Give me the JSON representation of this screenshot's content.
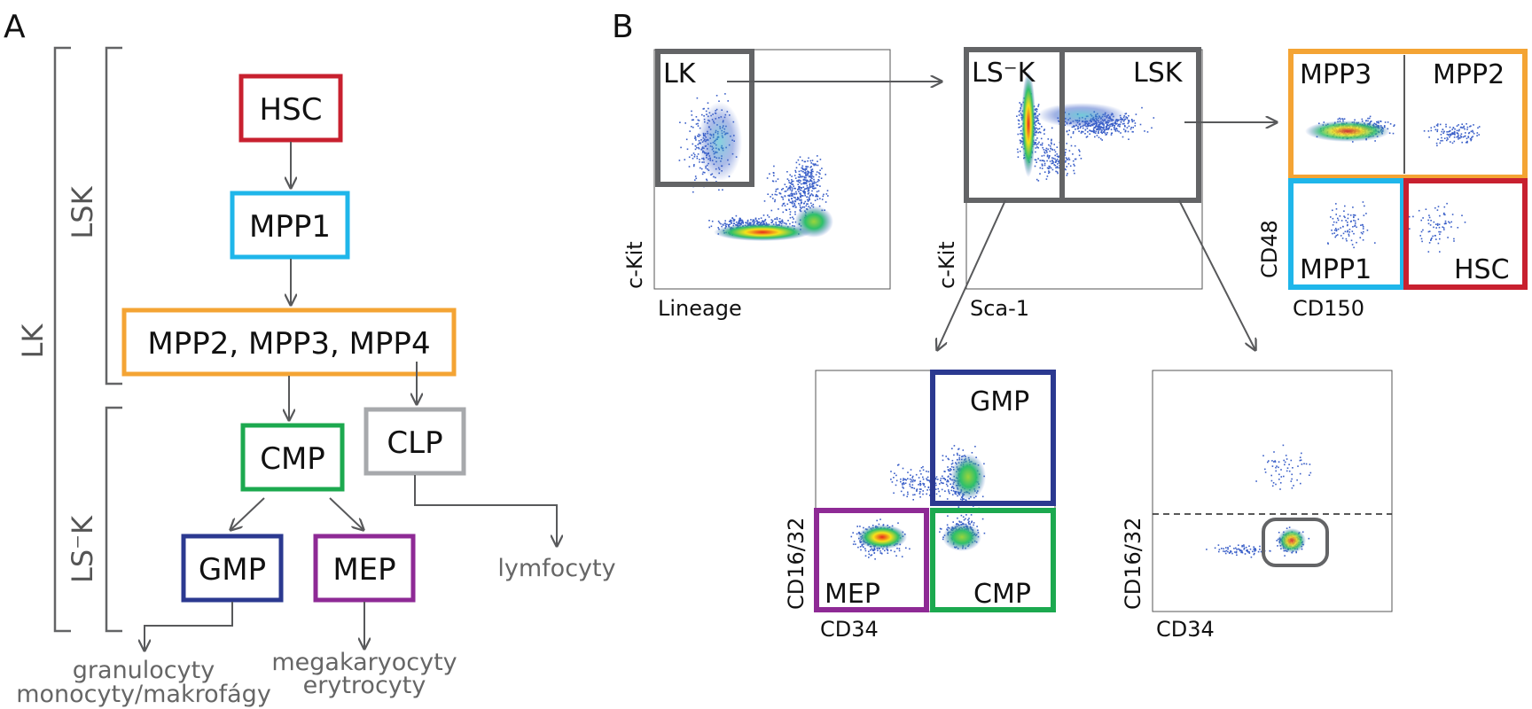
{
  "panel_a": {
    "letter": "A",
    "bracket_lk": "LK",
    "bracket_lsk": "LSK",
    "bracket_lsk_neg": "LS⁻K",
    "boxes": {
      "hsc": {
        "label": "HSC",
        "color": "#c8202f"
      },
      "mpp1": {
        "label": "MPP1",
        "color": "#1fb6ea"
      },
      "mpp234": {
        "label": "MPP2, MPP3, MPP4",
        "color": "#f4a434"
      },
      "cmp": {
        "label": "CMP",
        "color": "#1ca94f"
      },
      "clp": {
        "label": "CLP",
        "color": "#a7a9ac"
      },
      "gmp": {
        "label": "GMP",
        "color": "#2b3990"
      },
      "mep": {
        "label": "MEP",
        "color": "#8e2a95"
      }
    },
    "outputs": {
      "lymph": "lymfocyty",
      "gran_1": "granulocyty",
      "gran_2": "monocyty/makrofágy",
      "mega_1": "megakaryocyty",
      "mega_2": "erytrocyty"
    }
  },
  "panel_b": {
    "letter": "B",
    "plot_lineage": {
      "xlabel": "Lineage",
      "ylabel": "c-Kit",
      "gate": "LK"
    },
    "plot_sca": {
      "xlabel": "Sca-1",
      "ylabel": "c-Kit",
      "gate_left": "LS⁻K",
      "gate_right": "LSK"
    },
    "plot_cd150": {
      "xlabel": "CD150",
      "ylabel": "CD48",
      "mpp3": "MPP3",
      "mpp2": "MPP2",
      "mpp1": "MPP1",
      "hsc": "HSC"
    },
    "plot_cd34_left": {
      "xlabel": "CD34",
      "ylabel": "CD16/32",
      "gmp": "GMP",
      "mep": "MEP",
      "cmp": "CMP"
    },
    "plot_cd34_right": {
      "xlabel": "CD34",
      "ylabel": "CD16/32"
    }
  },
  "colors": {
    "hsc": "#c8202f",
    "mpp1": "#1fb6ea",
    "mpp_orange": "#f4a434",
    "cmp": "#1ca94f",
    "clp": "#a7a9ac",
    "gmp": "#2b3990",
    "mep": "#8e2a95",
    "gate_gray": "#636466",
    "arrow_gray": "#58595b",
    "density_blue": "#3a5fc8"
  }
}
